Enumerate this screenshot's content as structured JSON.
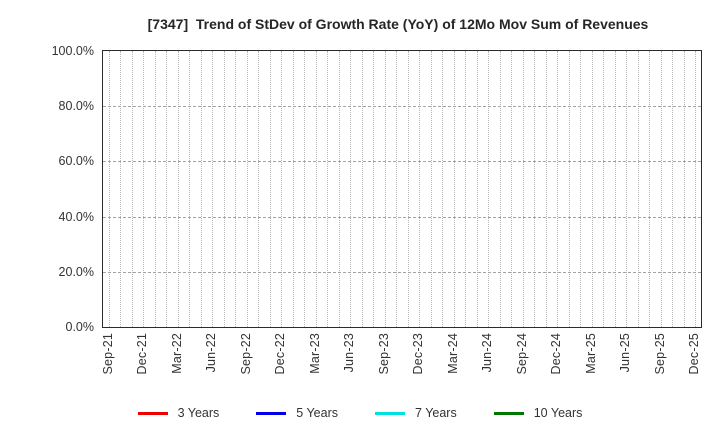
{
  "chart_data": {
    "type": "line",
    "title": "[7347]  Trend of StDev of Growth Rate (YoY) of 12Mo Mov Sum of Revenues",
    "plot_empty": true,
    "grid": true,
    "legend_position": "bottom",
    "x_axis": {
      "unit": "month",
      "start": "Sep-21",
      "end": "Dec-25",
      "n_months": 52,
      "tick_every_n_months": 3,
      "tick_labels": [
        "Sep-21",
        "Dec-21",
        "Mar-22",
        "Jun-22",
        "Sep-22",
        "Dec-22",
        "Mar-23",
        "Jun-23",
        "Sep-23",
        "Dec-23",
        "Mar-24",
        "Jun-24",
        "Sep-24",
        "Dec-24",
        "Mar-25",
        "Jun-25",
        "Sep-25",
        "Dec-25"
      ]
    },
    "y_axis": {
      "ylim": [
        0,
        100
      ],
      "tick_values": [
        0,
        20,
        40,
        60,
        80,
        100
      ],
      "tick_labels": [
        "0.0%",
        "20.0%",
        "40.0%",
        "60.0%",
        "80.0%",
        "100.0%"
      ]
    },
    "series": [
      {
        "name": "3 Years",
        "color": "#ee0000",
        "values": []
      },
      {
        "name": "5 Years",
        "color": "#0000ee",
        "values": []
      },
      {
        "name": "7 Years",
        "color": "#00e0e0",
        "values": []
      },
      {
        "name": "10 Years",
        "color": "#007700",
        "values": []
      }
    ]
  }
}
